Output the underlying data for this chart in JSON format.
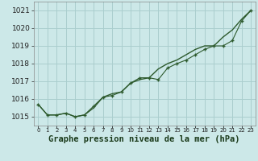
{
  "hours": [
    0,
    1,
    2,
    3,
    4,
    5,
    6,
    7,
    8,
    9,
    10,
    11,
    12,
    13,
    14,
    15,
    16,
    17,
    18,
    19,
    20,
    21,
    22,
    23
  ],
  "pressure_smooth": [
    1015.7,
    1015.1,
    1015.1,
    1015.2,
    1015.0,
    1015.1,
    1015.5,
    1016.1,
    1016.3,
    1016.4,
    1016.9,
    1017.1,
    1017.2,
    1017.7,
    1018.0,
    1018.2,
    1018.5,
    1018.8,
    1019.0,
    1019.0,
    1019.5,
    1019.9,
    1020.5,
    1021.0
  ],
  "pressure_detail": [
    1015.7,
    1015.1,
    1015.1,
    1015.2,
    1015.0,
    1015.1,
    1015.6,
    1016.1,
    1016.2,
    1016.4,
    1016.9,
    1017.2,
    1017.2,
    1017.1,
    1017.75,
    1018.0,
    1018.2,
    1018.5,
    1018.8,
    1019.0,
    1019.0,
    1019.3,
    1020.4,
    1021.0
  ],
  "ylim": [
    1014.5,
    1021.5
  ],
  "yticks": [
    1015,
    1016,
    1017,
    1018,
    1019,
    1020,
    1021
  ],
  "xlim": [
    -0.5,
    23.5
  ],
  "bg_color": "#cce8e8",
  "grid_color": "#aacece",
  "line_color": "#2d5a2d",
  "marker_color": "#2d5a2d",
  "xlabel": "Graphe pression niveau de la mer (hPa)",
  "xlabel_fontsize": 7.5,
  "ytick_fontsize": 6.5,
  "xtick_fontsize": 5.0
}
